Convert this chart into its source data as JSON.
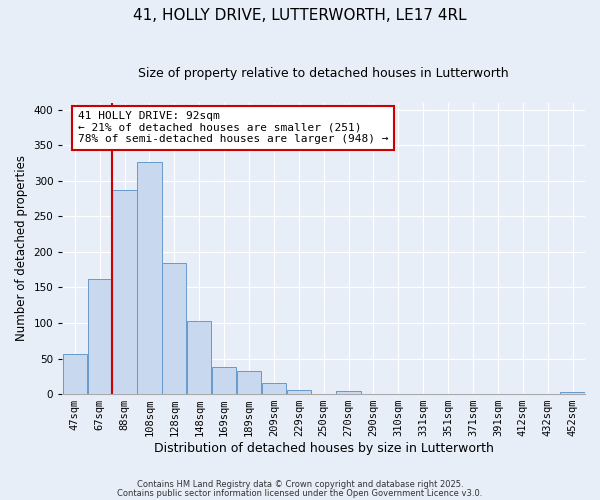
{
  "title": "41, HOLLY DRIVE, LUTTERWORTH, LE17 4RL",
  "subtitle": "Size of property relative to detached houses in Lutterworth",
  "xlabel": "Distribution of detached houses by size in Lutterworth",
  "ylabel": "Number of detached properties",
  "bar_color": "#c8d8ee",
  "bar_edge_color": "#6699cc",
  "bin_labels": [
    "47sqm",
    "67sqm",
    "88sqm",
    "108sqm",
    "128sqm",
    "148sqm",
    "169sqm",
    "189sqm",
    "209sqm",
    "229sqm",
    "250sqm",
    "270sqm",
    "290sqm",
    "310sqm",
    "331sqm",
    "351sqm",
    "371sqm",
    "391sqm",
    "412sqm",
    "432sqm",
    "452sqm"
  ],
  "bar_values": [
    57,
    162,
    287,
    327,
    185,
    103,
    38,
    32,
    15,
    6,
    0,
    4,
    0,
    0,
    0,
    0,
    0,
    0,
    0,
    0,
    3
  ],
  "ylim": [
    0,
    410
  ],
  "yticks": [
    0,
    50,
    100,
    150,
    200,
    250,
    300,
    350,
    400
  ],
  "vline_index": 2,
  "vline_color": "#cc0000",
  "annotation_text": "41 HOLLY DRIVE: 92sqm\n← 21% of detached houses are smaller (251)\n78% of semi-detached houses are larger (948) →",
  "annotation_box_facecolor": "#ffffff",
  "annotation_box_edgecolor": "#cc0000",
  "footnote1": "Contains HM Land Registry data © Crown copyright and database right 2025.",
  "footnote2": "Contains public sector information licensed under the Open Government Licence v3.0.",
  "background_color": "#e8eef8",
  "title_fontsize": 11,
  "subtitle_fontsize": 9,
  "tick_fontsize": 7.5,
  "xlabel_fontsize": 9,
  "ylabel_fontsize": 8.5,
  "annot_fontsize": 8
}
